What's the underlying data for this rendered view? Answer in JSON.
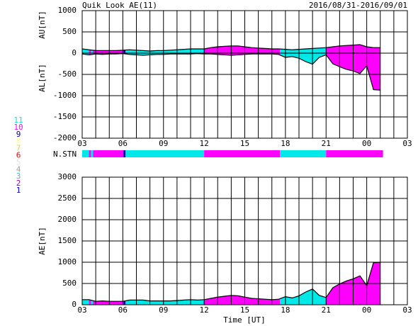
{
  "chart_data": [
    {
      "type": "area",
      "title": "Quik Look AE(11)",
      "subtitle": "2016/08/31-2016/09/01",
      "x": [
        3,
        3.5,
        4,
        4.5,
        5,
        5.5,
        6,
        6.5,
        7,
        7.5,
        8,
        8.5,
        9,
        9.5,
        10,
        10.5,
        11,
        11.5,
        12,
        12.5,
        13,
        13.5,
        14,
        14.5,
        15,
        15.5,
        16,
        16.5,
        17,
        17.5,
        18,
        18.5,
        19,
        19.5,
        20,
        20.5,
        21,
        21.5,
        22,
        22.5,
        23,
        23.5,
        24,
        24.5,
        25
      ],
      "series": [
        {
          "name": "AU[nT]",
          "color": "#000000",
          "values": [
            100,
            80,
            60,
            60,
            60,
            60,
            70,
            80,
            70,
            60,
            50,
            60,
            60,
            70,
            80,
            90,
            100,
            100,
            100,
            130,
            150,
            160,
            170,
            170,
            150,
            130,
            120,
            110,
            100,
            100,
            90,
            80,
            90,
            100,
            110,
            120,
            130,
            150,
            170,
            180,
            190,
            200,
            150,
            130,
            130
          ]
        },
        {
          "name": "AL[nT]",
          "color": "#000000",
          "values": [
            -20,
            -40,
            -20,
            -30,
            -20,
            -20,
            -10,
            -30,
            -40,
            -50,
            -40,
            -30,
            -30,
            -20,
            -20,
            -20,
            -20,
            -10,
            -20,
            -20,
            -30,
            -40,
            -50,
            -40,
            -30,
            -20,
            -20,
            -20,
            -20,
            -30,
            -100,
            -80,
            -120,
            -200,
            -260,
            -100,
            -40,
            -250,
            -320,
            -380,
            -420,
            -480,
            -300,
            -860,
            -870
          ]
        }
      ],
      "xlim": [
        3,
        27
      ],
      "xticks": [
        {
          "value": 3,
          "label": "03"
        },
        {
          "value": 6,
          "label": "06"
        },
        {
          "value": 9,
          "label": "09"
        },
        12,
        15,
        18,
        21,
        {
          "value": 24,
          "label": "00"
        },
        {
          "value": 27,
          "label": "03"
        }
      ],
      "xminor": [
        4,
        5,
        7,
        8,
        10,
        11,
        13,
        14,
        16,
        17,
        19,
        20,
        22,
        23,
        25,
        26
      ],
      "ylim": [
        -2000,
        1000
      ],
      "yticks": [
        1000,
        500,
        0,
        -500,
        -1000,
        -1500,
        -2000
      ],
      "grid": true
    },
    {
      "type": "strip",
      "label": "N.STN",
      "segments": [
        {
          "start": 3,
          "end": 3.5,
          "n": 11
        },
        {
          "start": 3.5,
          "end": 3.65,
          "n": 10
        },
        {
          "start": 3.65,
          "end": 3.8,
          "n": 11
        },
        {
          "start": 3.8,
          "end": 6.05,
          "n": 10
        },
        {
          "start": 6.05,
          "end": 6.2,
          "n": 9
        },
        {
          "start": 6.2,
          "end": 12,
          "n": 11
        },
        {
          "start": 12,
          "end": 17.6,
          "n": 10
        },
        {
          "start": 17.6,
          "end": 21,
          "n": 11
        },
        {
          "start": 21,
          "end": 25.2,
          "n": 10
        }
      ],
      "legend": [
        {
          "n": 11,
          "color": "#00e8e8"
        },
        {
          "n": 10,
          "color": "#ff00ff"
        },
        {
          "n": 9,
          "color": "#0000a0"
        },
        {
          "n": 8,
          "color": "#ffff90"
        },
        {
          "n": 7,
          "color": "#d8d840"
        },
        {
          "n": 6,
          "color": "#ff0000"
        },
        {
          "n": 5,
          "color": "#e0e0e0"
        },
        {
          "n": 4,
          "color": "#a0a0a0"
        },
        {
          "n": 3,
          "color": "#40c0c0"
        },
        {
          "n": 2,
          "color": "#a000a0"
        },
        {
          "n": 1,
          "color": "#0000ff"
        }
      ]
    },
    {
      "type": "area",
      "xlabel": "Time [UT]",
      "x": [
        3,
        3.5,
        4,
        4.5,
        5,
        5.5,
        6,
        6.5,
        7,
        7.5,
        8,
        8.5,
        9,
        9.5,
        10,
        10.5,
        11,
        11.5,
        12,
        12.5,
        13,
        13.5,
        14,
        14.5,
        15,
        15.5,
        16,
        16.5,
        17,
        17.5,
        18,
        18.5,
        19,
        19.5,
        20,
        20.5,
        21,
        21.5,
        22,
        22.5,
        23,
        23.5,
        24,
        24.5,
        25
      ],
      "series": [
        {
          "name": "AE[nT]",
          "color": "#000000",
          "values": [
            120,
            120,
            80,
            90,
            80,
            80,
            80,
            110,
            110,
            110,
            90,
            90,
            90,
            90,
            100,
            110,
            120,
            110,
            120,
            150,
            180,
            200,
            220,
            210,
            180,
            150,
            140,
            130,
            120,
            130,
            190,
            160,
            210,
            300,
            370,
            220,
            170,
            400,
            490,
            560,
            610,
            680,
            450,
            990,
            1000
          ]
        }
      ],
      "xlim": [
        3,
        27
      ],
      "xticks": [
        {
          "value": 3,
          "label": "03"
        },
        {
          "value": 6,
          "label": "06"
        },
        {
          "value": 9,
          "label": "09"
        },
        12,
        15,
        18,
        21,
        {
          "value": 24,
          "label": "00"
        },
        {
          "value": 27,
          "label": "03"
        }
      ],
      "xminor": [
        4,
        5,
        7,
        8,
        10,
        11,
        13,
        14,
        16,
        17,
        19,
        20,
        22,
        23,
        25,
        26
      ],
      "ylim": [
        0,
        3000
      ],
      "yticks": [
        0,
        500,
        1000,
        1500,
        2000,
        2500,
        3000
      ],
      "grid": true
    }
  ]
}
